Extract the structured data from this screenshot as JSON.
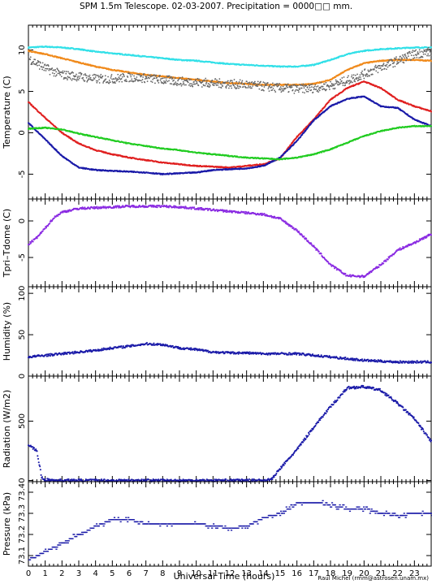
{
  "title": "SPM 1.5m Telescope. 02-03-2007. Precipitation = 0000□□ mm.",
  "xlabel": "Universal Time (hours)",
  "credit": "Raul Michel (rmm@astrosen.unam.mx)",
  "x_ticks": [
    "0",
    "1",
    "2",
    "3",
    "4",
    "5",
    "6",
    "7",
    "8",
    "9",
    "10",
    "11",
    "12",
    "13",
    "14",
    "15",
    "16",
    "17",
    "18",
    "19",
    "20",
    "21",
    "22",
    "23"
  ],
  "chart_data": [
    {
      "type": "line",
      "ylabel": "Temperature (C)",
      "xlim": [
        0,
        24
      ],
      "ylim": [
        -8,
        13
      ],
      "yticks": [
        -5,
        0,
        5,
        10
      ],
      "series": [
        {
          "color": "#33e0e8",
          "x": [
            0,
            1,
            2,
            3,
            4,
            5,
            6,
            7,
            8,
            9,
            10,
            11,
            12,
            13,
            14,
            15,
            16,
            17,
            18,
            19,
            20,
            21,
            22,
            23,
            24
          ],
          "y": [
            10.3,
            10.4,
            10.3,
            10.1,
            9.8,
            9.6,
            9.4,
            9.2,
            9.0,
            8.8,
            8.7,
            8.5,
            8.3,
            8.2,
            8.1,
            8.0,
            8.0,
            8.2,
            8.8,
            9.5,
            9.9,
            10.1,
            10.2,
            10.3,
            10.3
          ]
        },
        {
          "color": "#f08a1c",
          "x": [
            0,
            1,
            2,
            3,
            4,
            5,
            6,
            7,
            8,
            9,
            10,
            11,
            12,
            13,
            14,
            15,
            16,
            17,
            18,
            19,
            20,
            21,
            22,
            23,
            24
          ],
          "y": [
            9.9,
            9.5,
            9.0,
            8.5,
            8.0,
            7.6,
            7.3,
            7.0,
            6.8,
            6.6,
            6.4,
            6.2,
            6.0,
            5.9,
            5.8,
            5.8,
            5.8,
            5.9,
            6.4,
            7.6,
            8.4,
            8.7,
            8.8,
            8.8,
            8.7
          ]
        },
        {
          "color": "#666666",
          "x": [
            0,
            1,
            2,
            3,
            4,
            5,
            6,
            7,
            8,
            9,
            10,
            11,
            12,
            13,
            14,
            15,
            16,
            17,
            18,
            19,
            20,
            21,
            22,
            23,
            24
          ],
          "y": [
            9.0,
            7.8,
            7.0,
            6.8,
            6.5,
            6.5,
            6.7,
            6.6,
            6.4,
            6.2,
            6.1,
            6.0,
            5.9,
            5.8,
            5.6,
            5.4,
            5.3,
            5.4,
            5.7,
            6.3,
            7.1,
            7.9,
            8.7,
            9.5,
            9.8
          ]
        },
        {
          "color": "#e02020",
          "x": [
            0,
            1,
            2,
            3,
            4,
            5,
            6,
            7,
            8,
            9,
            10,
            11,
            12,
            13,
            14,
            15,
            16,
            17,
            18,
            19,
            20,
            21,
            22,
            23,
            24
          ],
          "y": [
            3.7,
            1.8,
            0.0,
            -1.3,
            -2.1,
            -2.6,
            -3.0,
            -3.3,
            -3.6,
            -3.8,
            -4.0,
            -4.1,
            -4.2,
            -4.0,
            -3.8,
            -3.1,
            -0.5,
            1.6,
            4.0,
            5.4,
            6.2,
            5.4,
            4.0,
            3.2,
            2.6
          ]
        },
        {
          "color": "#1a1aa8",
          "x": [
            0,
            1,
            2,
            3,
            4,
            5,
            6,
            7,
            8,
            9,
            10,
            11,
            12,
            13,
            14,
            15,
            16,
            17,
            18,
            19,
            20,
            21,
            22,
            23,
            24
          ],
          "y": [
            1.2,
            -0.8,
            -2.8,
            -4.2,
            -4.5,
            -4.6,
            -4.7,
            -4.8,
            -5.0,
            -4.9,
            -4.8,
            -4.5,
            -4.4,
            -4.3,
            -4.0,
            -3.0,
            -1.0,
            1.5,
            3.2,
            4.1,
            4.4,
            3.2,
            3.0,
            1.6,
            0.8
          ]
        },
        {
          "color": "#22cc22",
          "x": [
            0,
            1,
            2,
            3,
            4,
            5,
            6,
            7,
            8,
            9,
            10,
            11,
            12,
            13,
            14,
            15,
            16,
            17,
            18,
            19,
            20,
            21,
            22,
            23,
            24
          ],
          "y": [
            0.5,
            0.6,
            0.4,
            -0.1,
            -0.5,
            -0.9,
            -1.3,
            -1.6,
            -1.9,
            -2.1,
            -2.4,
            -2.6,
            -2.8,
            -3.0,
            -3.1,
            -3.2,
            -3.0,
            -2.6,
            -2.0,
            -1.2,
            -0.4,
            0.2,
            0.6,
            0.8,
            0.8
          ]
        }
      ]
    },
    {
      "type": "line",
      "ylabel": "Tpri–Tdome (C)",
      "xlim": [
        0,
        24
      ],
      "ylim": [
        -9,
        3
      ],
      "yticks": [
        -5,
        0
      ],
      "series": [
        {
          "color": "#8a2be2",
          "x": [
            0,
            0.5,
            1,
            1.5,
            2,
            3,
            4,
            5,
            6,
            7,
            8,
            9,
            10,
            11,
            12,
            13,
            14,
            15,
            16,
            17,
            18,
            19,
            20,
            21,
            22,
            23,
            24
          ],
          "y": [
            -3.2,
            -2.3,
            -1.0,
            0.4,
            1.2,
            1.7,
            1.8,
            1.9,
            2.0,
            2.0,
            2.0,
            1.9,
            1.7,
            1.5,
            1.3,
            1.1,
            0.9,
            0.3,
            -1.3,
            -3.5,
            -6.0,
            -7.5,
            -7.6,
            -6.0,
            -4.0,
            -3.0,
            -1.8
          ]
        }
      ]
    },
    {
      "type": "line",
      "ylabel": "Humidity (%)",
      "xlim": [
        0,
        24
      ],
      "ylim": [
        0,
        108
      ],
      "yticks": [
        0,
        50,
        100
      ],
      "series": [
        {
          "color": "#1a1aa8",
          "x": [
            0,
            1,
            2,
            3,
            4,
            5,
            6,
            7,
            8,
            9,
            10,
            11,
            12,
            13,
            14,
            15,
            16,
            17,
            18,
            19,
            20,
            21,
            22,
            23,
            24
          ],
          "y": [
            23,
            25,
            27,
            29,
            31,
            34,
            36,
            39,
            38,
            34,
            32,
            29,
            28,
            28,
            27,
            27,
            27,
            25,
            23,
            21,
            19,
            18,
            17,
            17,
            17
          ]
        }
      ]
    },
    {
      "type": "line",
      "ylabel": "Radiation (W/m2)",
      "xlim": [
        0,
        24
      ],
      "ylim": [
        -10,
        880
      ],
      "yticks": [
        0,
        500
      ],
      "series": [
        {
          "color": "#1a1aa8",
          "x": [
            0,
            0.5,
            0.8,
            1,
            2,
            3,
            4,
            5,
            6,
            7,
            8,
            9,
            10,
            11,
            12,
            13,
            14,
            14.5,
            15,
            16,
            17,
            18,
            19,
            20,
            21,
            22,
            23,
            24
          ],
          "y": [
            300,
            250,
            20,
            5,
            0,
            0,
            0,
            0,
            0,
            0,
            0,
            0,
            0,
            0,
            0,
            0,
            0,
            10,
            100,
            260,
            450,
            620,
            780,
            790,
            760,
            650,
            520,
            330
          ]
        }
      ]
    },
    {
      "type": "scatter",
      "ylabel": "Pressure (kPa)",
      "xlim": [
        0,
        24
      ],
      "ylim": [
        73.05,
        73.45
      ],
      "yticks": [
        73.1,
        73.2,
        73.3,
        73.4
      ],
      "ytick_labels": [
        "73.1",
        "73.2",
        "73.3",
        "73.4"
      ],
      "series": [
        {
          "color": "#1a1aa8",
          "x": [
            0,
            1,
            2,
            3,
            4,
            5,
            6,
            7,
            8,
            9,
            10,
            11,
            12,
            13,
            14,
            15,
            16,
            17,
            18,
            19,
            20,
            21,
            22,
            23,
            24
          ],
          "y": [
            73.08,
            73.12,
            73.16,
            73.2,
            73.24,
            73.27,
            73.27,
            73.25,
            73.25,
            73.25,
            73.25,
            73.24,
            73.23,
            73.24,
            73.28,
            73.3,
            73.35,
            73.35,
            73.34,
            73.32,
            73.32,
            73.3,
            73.29,
            73.3,
            73.3
          ]
        }
      ]
    }
  ]
}
